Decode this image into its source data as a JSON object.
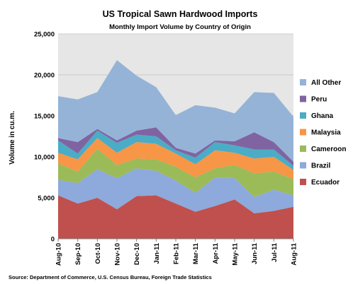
{
  "chart_data": {
    "type": "area",
    "stacked": true,
    "title": "US Tropical Sawn Hardwood Imports",
    "subtitle": "Monthly Import Volume by Country of Origin",
    "ylabel": "Volume in cu.m.",
    "xlabel": "",
    "ylim": [
      0,
      25000
    ],
    "yticks": [
      0,
      5000,
      10000,
      15000,
      20000,
      25000
    ],
    "ytick_labels": [
      "0",
      "5,000",
      "10,000",
      "15,000",
      "20,000",
      "25,000"
    ],
    "grid": true,
    "legend_position": "right",
    "x_tick_labels": [
      "Aug-10",
      "Sep-10",
      "Oct-10",
      "Nov-10",
      "Dec-10",
      "Jan-11",
      "Feb-11",
      "Mar-11",
      "Apr-11",
      "May-11",
      "Jun-11",
      "Jul-11",
      "Aug-11"
    ],
    "series": [
      {
        "name": "Ecuador",
        "color": "#c0504d",
        "values": [
          5300,
          4300,
          5000,
          3600,
          5200,
          5300,
          4300,
          3300,
          4000,
          4800,
          3100,
          3400,
          3900
        ]
      },
      {
        "name": "Brazil",
        "color": "#8ea9db",
        "values": [
          1900,
          2500,
          3500,
          3800,
          3400,
          3000,
          2800,
          2300,
          3500,
          2600,
          2000,
          2600,
          1400
        ]
      },
      {
        "name": "Cameroon",
        "color": "#9bbb59",
        "values": [
          2000,
          1400,
          2500,
          1600,
          1200,
          1400,
          1700,
          1900,
          1100,
          1600,
          2900,
          2200,
          2000
        ]
      },
      {
        "name": "Malaysia",
        "color": "#f79646",
        "values": [
          1300,
          1500,
          1300,
          1500,
          2000,
          1900,
          1600,
          1600,
          2200,
          1500,
          1800,
          1800,
          1100
        ]
      },
      {
        "name": "Ghana",
        "color": "#4bacc6",
        "values": [
          1500,
          700,
          900,
          1200,
          900,
          900,
          400,
          800,
          1000,
          900,
          1100,
          900,
          500
        ]
      },
      {
        "name": "Peru",
        "color": "#8064a2",
        "values": [
          300,
          1400,
          200,
          300,
          500,
          1100,
          300,
          500,
          200,
          500,
          2100,
          900,
          500
        ]
      },
      {
        "name": "All Other",
        "color": "#95b3d7",
        "values": [
          5100,
          5200,
          4500,
          9800,
          6700,
          4900,
          4000,
          5900,
          4000,
          3400,
          4900,
          6000,
          5500
        ]
      }
    ],
    "legend_order": [
      "All Other",
      "Peru",
      "Ghana",
      "Malaysia",
      "Cameroon",
      "Brazil",
      "Ecuador"
    ]
  },
  "source_note": "Source: Department of Commerce, U.S. Census Bureau, Foreign Trade Statistics",
  "colors": {
    "plot_background": "#e6e6e6",
    "grid": "#bfbfbf"
  }
}
